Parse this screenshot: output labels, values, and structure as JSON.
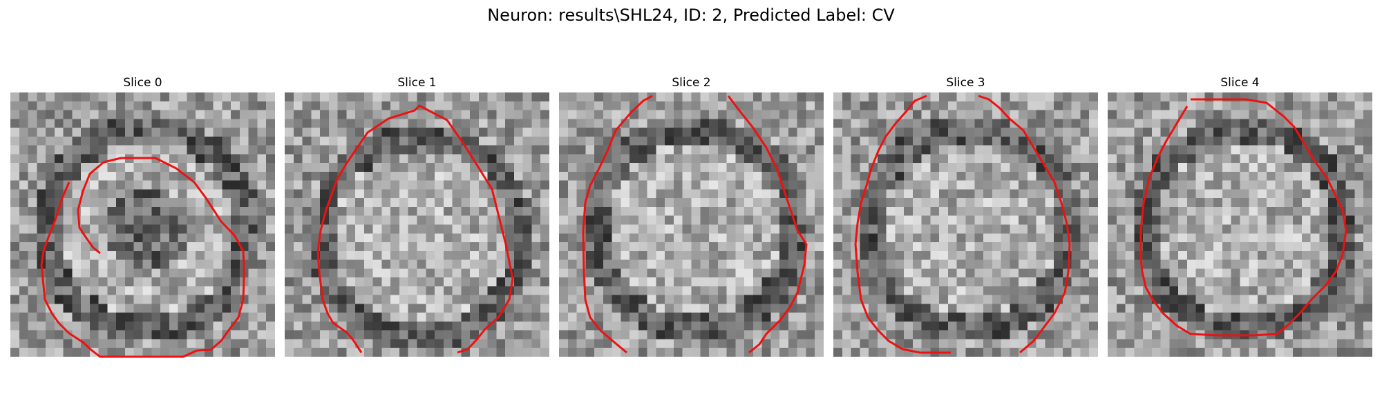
{
  "figure": {
    "title": "Neuron: results\\SHL24, ID: 2, Predicted Label: CV"
  },
  "contour_color": "#ee1111",
  "panels": [
    {
      "title": "Slice 0",
      "dark_center": true
    },
    {
      "title": "Slice 1",
      "dark_center": false
    },
    {
      "title": "Slice 2",
      "dark_center": false
    },
    {
      "title": "Slice 3",
      "dark_center": false
    },
    {
      "title": "Slice 4",
      "dark_center": false
    }
  ]
}
